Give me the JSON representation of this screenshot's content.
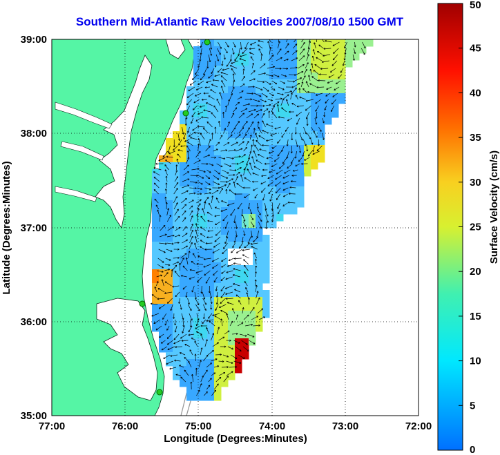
{
  "title": "Southern Mid-Atlantic Raw Velocities 2007/08/10 1500 GMT",
  "chart_data": {
    "type": "map",
    "xlabel": "Longitude (Degrees:Minutes)",
    "ylabel": "Latitude (Degrees:Minutes)",
    "xlim": [
      -77,
      -72
    ],
    "ylim": [
      35,
      39
    ],
    "x_ticks": [
      "77:00",
      "76:00",
      "75:00",
      "74:00",
      "73:00",
      "72:00"
    ],
    "y_ticks": [
      "35:00",
      "36:00",
      "37:00",
      "38:00",
      "39:00"
    ],
    "grid": true,
    "colorbar": {
      "label": "Surface Velocity (cm/s)",
      "range": [
        0,
        50
      ],
      "ticks": [
        "0",
        "5",
        "10",
        "15",
        "20",
        "25",
        "30",
        "35",
        "40",
        "45",
        "50"
      ]
    },
    "land_color": "#55f5a5",
    "station_color": "#22cc22"
  }
}
